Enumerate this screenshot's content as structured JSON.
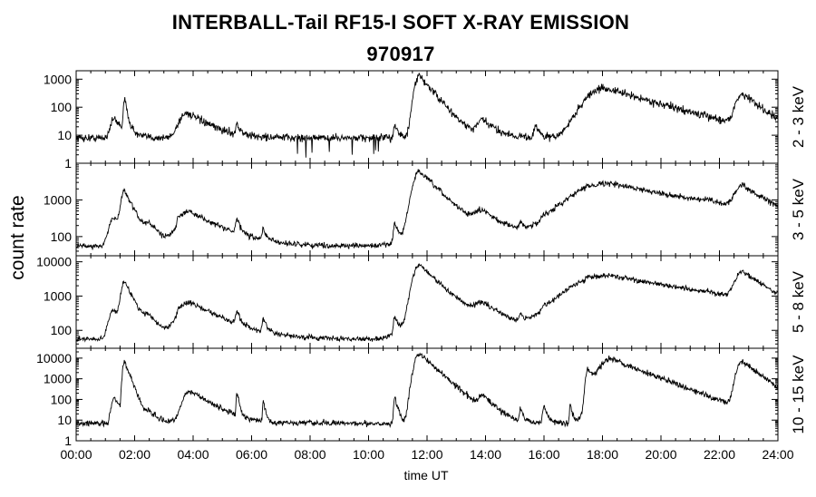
{
  "chart_data": {
    "type": "line",
    "title": "INTERBALL-Tail RF15-I SOFT X-RAY EMISSION",
    "subtitle": "970917",
    "xlabel": "time UT",
    "ylabel": "count rate",
    "x_tick_labels": [
      "00:00",
      "02:00",
      "04:00",
      "06:00",
      "08:00",
      "10:00",
      "12:00",
      "14:00",
      "16:00",
      "18:00",
      "20:00",
      "22:00",
      "24:00"
    ],
    "xlim": [
      0,
      24
    ],
    "y_scale": "log",
    "grid": false,
    "legend": "none",
    "panels": [
      {
        "name": "2 - 3 keV",
        "ylim": [
          1,
          2000
        ],
        "y_ticks": [
          1,
          10,
          100,
          1000
        ],
        "y_tick_labels": [
          "1",
          "10",
          "100",
          "1000"
        ],
        "baseline": 8,
        "events": [
          [
            1.3,
            30,
            0.3
          ],
          [
            1.65,
            180,
            0.08
          ],
          [
            3.8,
            55,
            0.6
          ],
          [
            5.5,
            15,
            0.1
          ],
          [
            10.9,
            18,
            0.1
          ],
          [
            11.75,
            1300,
            0.35
          ],
          [
            13.9,
            25,
            0.4
          ],
          [
            15.7,
            15,
            0.12
          ],
          [
            17.5,
            25,
            0.15
          ],
          [
            18.1,
            470,
            1.4
          ],
          [
            22.8,
            280,
            0.5
          ]
        ]
      },
      {
        "name": "3 - 5 keV",
        "ylim": [
          30,
          10000
        ],
        "y_ticks": [
          100,
          1000
        ],
        "y_tick_labels": [
          "100",
          "1000"
        ],
        "baseline": 55,
        "events": [
          [
            1.3,
            270,
            0.4
          ],
          [
            1.65,
            1700,
            0.25
          ],
          [
            2.5,
            120,
            0.4
          ],
          [
            3.5,
            130,
            0.1
          ],
          [
            3.9,
            420,
            0.9
          ],
          [
            5.5,
            170,
            0.12
          ],
          [
            6.4,
            90,
            0.1
          ],
          [
            10.9,
            170,
            0.1
          ],
          [
            11.75,
            5800,
            0.5
          ],
          [
            12.3,
            250,
            1.8
          ],
          [
            13.9,
            300,
            0.6
          ],
          [
            15.2,
            100,
            0.1
          ],
          [
            16.0,
            110,
            0.2
          ],
          [
            16.9,
            110,
            0.08
          ],
          [
            17.5,
            300,
            0.12
          ],
          [
            18.2,
            2800,
            2.8
          ],
          [
            21.6,
            180,
            0.3
          ],
          [
            22.8,
            2000,
            0.6
          ]
        ]
      },
      {
        "name": "5 - 8 keV",
        "ylim": [
          30,
          15000
        ],
        "y_ticks": [
          100,
          1000,
          10000
        ],
        "y_tick_labels": [
          "100",
          "1000",
          "10000"
        ],
        "baseline": 55,
        "events": [
          [
            1.3,
            350,
            0.4
          ],
          [
            1.65,
            2500,
            0.25
          ],
          [
            2.5,
            140,
            0.4
          ],
          [
            3.5,
            150,
            0.1
          ],
          [
            3.9,
            600,
            0.9
          ],
          [
            5.5,
            200,
            0.12
          ],
          [
            6.4,
            130,
            0.1
          ],
          [
            10.9,
            200,
            0.1
          ],
          [
            11.75,
            8000,
            0.5
          ],
          [
            12.3,
            300,
            1.8
          ],
          [
            13.9,
            400,
            0.6
          ],
          [
            15.2,
            120,
            0.1
          ],
          [
            16.0,
            150,
            0.2
          ],
          [
            16.9,
            150,
            0.08
          ],
          [
            17.5,
            500,
            0.12
          ],
          [
            18.2,
            4000,
            2.8
          ],
          [
            21.6,
            200,
            0.3
          ],
          [
            22.8,
            4500,
            0.6
          ]
        ]
      },
      {
        "name": "10 - 15 keV",
        "ylim": [
          1,
          30000
        ],
        "y_ticks": [
          1,
          10,
          100,
          1000,
          10000
        ],
        "y_tick_labels": [
          "1",
          "10",
          "100",
          "1000",
          "10000"
        ],
        "baseline": 7,
        "events": [
          [
            1.3,
            120,
            0.2
          ],
          [
            1.65,
            7000,
            0.12
          ],
          [
            2.5,
            15,
            0.3
          ],
          [
            3.9,
            250,
            0.5
          ],
          [
            5.5,
            200,
            0.06
          ],
          [
            6.4,
            100,
            0.05
          ],
          [
            10.9,
            120,
            0.08
          ],
          [
            11.75,
            16000,
            0.35
          ],
          [
            13.9,
            130,
            0.3
          ],
          [
            15.2,
            30,
            0.08
          ],
          [
            16.0,
            40,
            0.1
          ],
          [
            16.9,
            50,
            0.06
          ],
          [
            17.5,
            3000,
            0.15
          ],
          [
            18.3,
            9000,
            0.8
          ],
          [
            22.8,
            7000,
            0.4
          ]
        ]
      }
    ]
  }
}
